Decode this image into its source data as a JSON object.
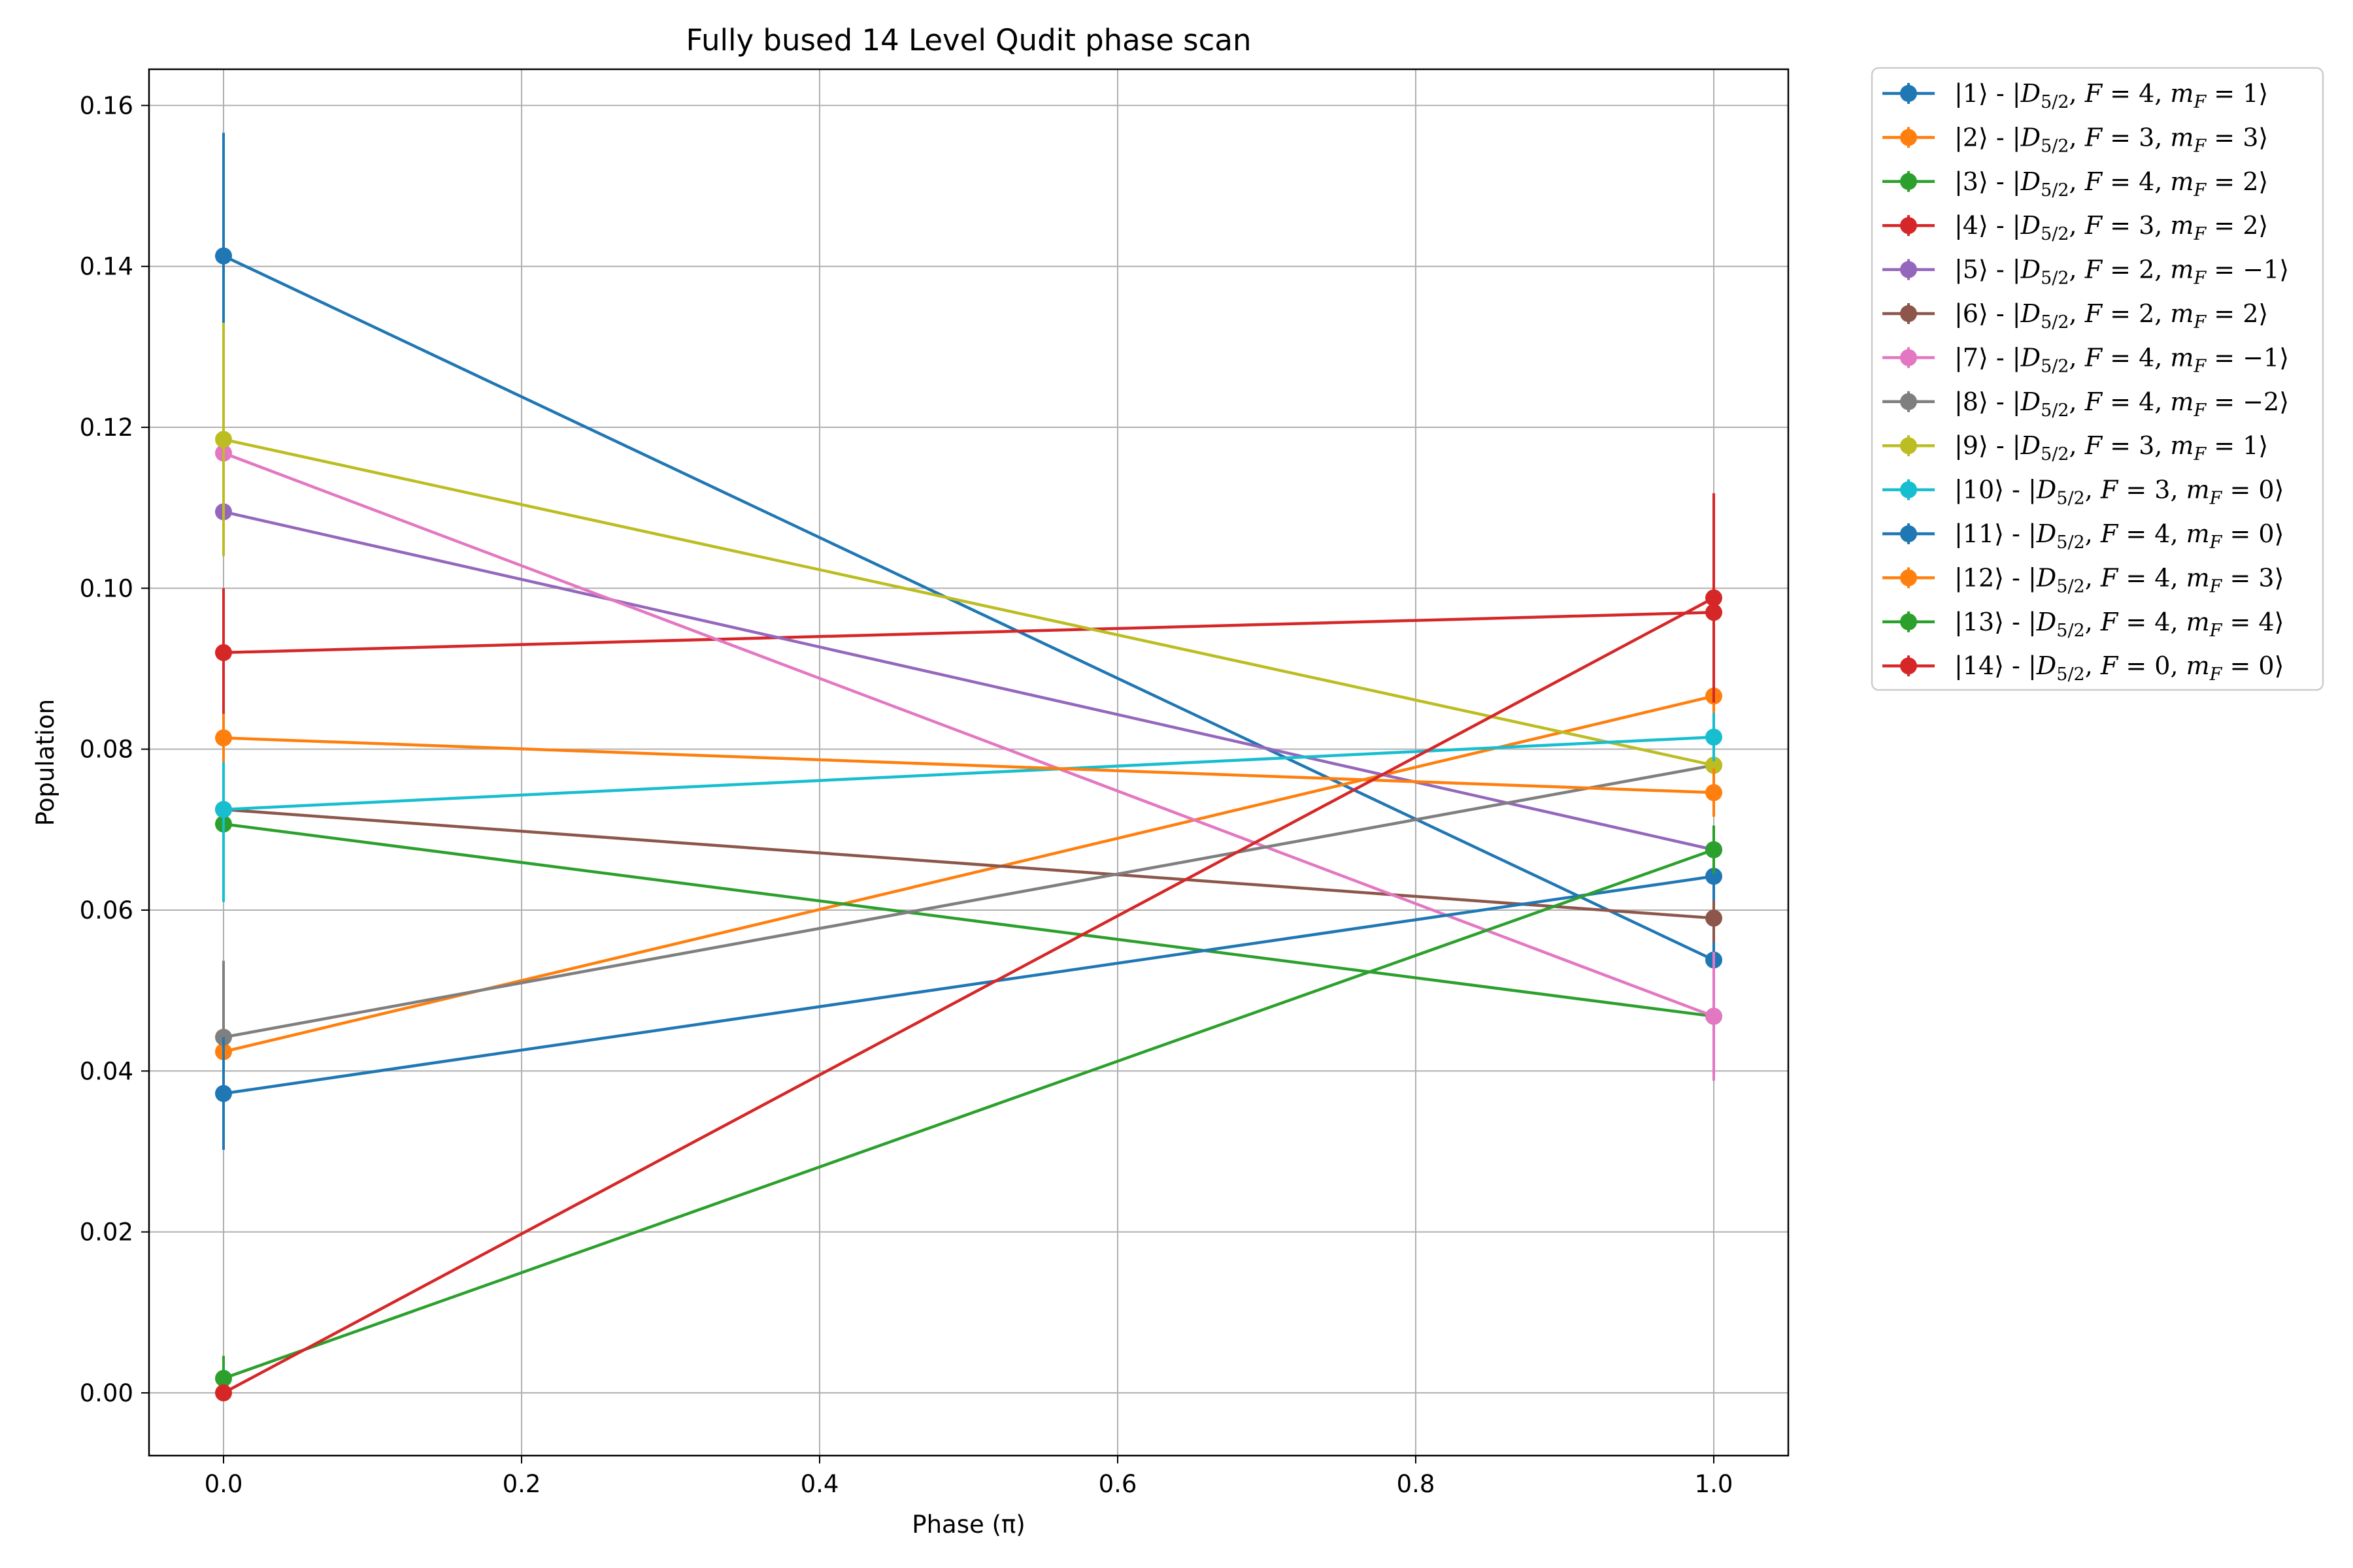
{
  "chart_data": {
    "type": "line",
    "title": "Fully bused 14 Level Qudit phase scan",
    "xlabel": "Phase (π)",
    "ylabel": "Population",
    "xlim": [
      -0.05,
      1.05
    ],
    "ylim": [
      -0.0078,
      0.1645
    ],
    "x_ticks": [
      0.0,
      0.2,
      0.4,
      0.6,
      0.8,
      1.0
    ],
    "x_tick_labels": [
      "0.0",
      "0.2",
      "0.4",
      "0.6",
      "0.8",
      "1.0"
    ],
    "y_ticks": [
      0.0,
      0.02,
      0.04,
      0.06,
      0.08,
      0.1,
      0.12,
      0.14,
      0.16
    ],
    "y_tick_labels": [
      "0.00",
      "0.02",
      "0.04",
      "0.06",
      "0.08",
      "0.10",
      "0.12",
      "0.14",
      "0.16"
    ],
    "grid": true,
    "error_bars": true,
    "markers": "circle",
    "legend_placement": "outside-right-top",
    "series": [
      {
        "name": "|1⟩ - |D5/2, F = 4, mF = 1⟩",
        "state": "1",
        "F": "4",
        "mF": "1",
        "color": "#1f77b4",
        "x": [
          0,
          1
        ],
        "y": [
          0.1413,
          0.0538
        ],
        "yerr": [
          0.0153,
          0.0035
        ]
      },
      {
        "name": "|2⟩ - |D5/2, F = 3, mF = 3⟩",
        "state": "2",
        "F": "3",
        "mF": "3",
        "color": "#ff7f0e",
        "x": [
          0,
          1
        ],
        "y": [
          0.0424,
          0.0866
        ],
        "yerr": [
          0.0095,
          0.005
        ]
      },
      {
        "name": "|3⟩ - |D5/2, F = 4, mF = 2⟩",
        "state": "3",
        "F": "4",
        "mF": "2",
        "color": "#2ca02c",
        "x": [
          0,
          1
        ],
        "y": [
          0.0707,
          0.0468
        ],
        "yerr": [
          0.0095,
          0.003
        ]
      },
      {
        "name": "|4⟩ - |D5/2, F = 3, mF = 2⟩",
        "state": "4",
        "F": "3",
        "mF": "2",
        "color": "#d62728",
        "x": [
          0,
          1
        ],
        "y": [
          0.092,
          0.097
        ],
        "yerr": [
          0.008,
          0.005
        ]
      },
      {
        "name": "|5⟩ - |D5/2, F = 2, mF = −1⟩",
        "state": "5",
        "F": "2",
        "mF": "−1",
        "color": "#9467bd",
        "x": [
          0,
          1
        ],
        "y": [
          0.1095,
          0.0675
        ],
        "yerr": [
          0.0055,
          0.003
        ]
      },
      {
        "name": "|6⟩ - |D5/2, F = 2, mF = 2⟩",
        "state": "6",
        "F": "2",
        "mF": "2",
        "color": "#8c564b",
        "x": [
          0,
          1
        ],
        "y": [
          0.0725,
          0.059
        ],
        "yerr": [
          0.003,
          0.003
        ]
      },
      {
        "name": "|7⟩ - |D5/2, F = 4, mF = −1⟩",
        "state": "7",
        "F": "4",
        "mF": "−1",
        "color": "#e377c2",
        "x": [
          0,
          1
        ],
        "y": [
          0.1168,
          0.0468
        ],
        "yerr": [
          0.003,
          0.008
        ]
      },
      {
        "name": "|8⟩ - |D5/2, F = 4, mF = −2⟩",
        "state": "8",
        "F": "4",
        "mF": "−2",
        "color": "#7f7f7f",
        "x": [
          0,
          1
        ],
        "y": [
          0.0442,
          0.078
        ],
        "yerr": [
          0.0095,
          0.003
        ]
      },
      {
        "name": "|9⟩ - |D5/2, F = 3, mF = 1⟩",
        "state": "9",
        "F": "3",
        "mF": "1",
        "color": "#bcbd22",
        "x": [
          0,
          1
        ],
        "y": [
          0.1185,
          0.078
        ],
        "yerr": [
          0.0145,
          0.003
        ]
      },
      {
        "name": "|10⟩ - |D5/2, F = 3, mF = 0⟩",
        "state": "10",
        "F": "3",
        "mF": "0",
        "color": "#17becf",
        "x": [
          0,
          1
        ],
        "y": [
          0.0725,
          0.0815
        ],
        "yerr": [
          0.0115,
          0.003
        ]
      },
      {
        "name": "|11⟩ - |D5/2, F = 4, mF = 0⟩",
        "state": "11",
        "F": "4",
        "mF": "0",
        "color": "#1f77b4",
        "x": [
          0,
          1
        ],
        "y": [
          0.0372,
          0.0642
        ],
        "yerr": [
          0.007,
          0.003
        ]
      },
      {
        "name": "|12⟩ - |D5/2, F = 4, mF = 3⟩",
        "state": "12",
        "F": "4",
        "mF": "3",
        "color": "#ff7f0e",
        "x": [
          0,
          1
        ],
        "y": [
          0.0814,
          0.0746
        ],
        "yerr": [
          0.003,
          0.003
        ]
      },
      {
        "name": "|13⟩ - |D5/2, F = 4, mF = 4⟩",
        "state": "13",
        "F": "4",
        "mF": "4",
        "color": "#2ca02c",
        "x": [
          0,
          1
        ],
        "y": [
          0.0018,
          0.0675
        ],
        "yerr": [
          0.0028,
          0.003
        ]
      },
      {
        "name": "|14⟩ - |D5/2, F = 0, mF = 0⟩",
        "state": "14",
        "F": "0",
        "mF": "0",
        "color": "#d62728",
        "x": [
          0,
          1
        ],
        "y": [
          0.0,
          0.0988
        ],
        "yerr": [
          0.0005,
          0.013
        ]
      }
    ]
  }
}
